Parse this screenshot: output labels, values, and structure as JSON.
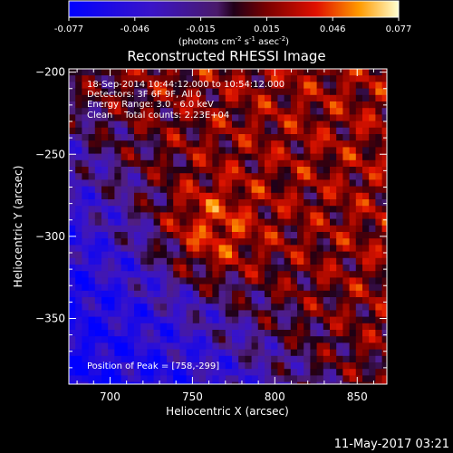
{
  "chart_data": {
    "type": "heatmap",
    "title": "Reconstructed RHESSI Image",
    "xlabel": "Heliocentric X (arcsec)",
    "ylabel": "Heliocentric Y (arcsec)",
    "xlim": [
      675,
      868
    ],
    "ylim": [
      -390,
      -198
    ],
    "xticks": [
      700,
      750,
      800,
      850
    ],
    "yticks": [
      -200,
      -250,
      -300,
      -350
    ],
    "colorbar": {
      "ticks": [
        "-0.077",
        "-0.046",
        "-0.015",
        "0.015",
        "0.046",
        "0.077"
      ],
      "range": [
        -0.077,
        0.077
      ],
      "unit_text": "(photons cm",
      "unit_sup1": "-2",
      "unit_s": " s",
      "unit_sup2": "-1",
      "unit_asec": " asec",
      "unit_sup3": "-2",
      "unit_close": ")"
    },
    "annotations": [
      "18-Sep-2014 10:44:12.000 to 10:54:12.000",
      "Detectors: 3F 6F 9F, All 0",
      "Energy Range: 3.0 - 6.0 keV",
      "Clean    Total counts: 2.23E+04"
    ],
    "peak_label": "Position of Peak = [758,-299]",
    "peak": [
      758,
      -299
    ],
    "timestamp": "11-May-2017 03:21"
  }
}
